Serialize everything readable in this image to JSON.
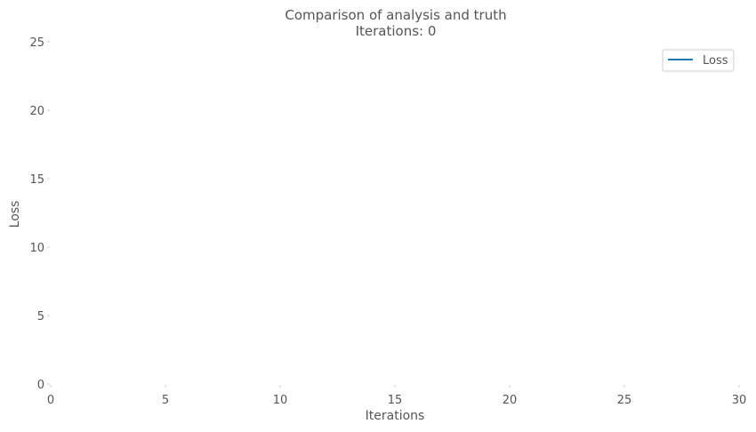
{
  "chart_data": {
    "type": "line",
    "title": "Comparison of analysis and truth",
    "subtitle": "Iterations: 0",
    "xlabel": "Iterations",
    "ylabel": "Loss",
    "xlim": [
      0,
      30
    ],
    "ylim": [
      0,
      25
    ],
    "xticks": [
      "0",
      "5",
      "10",
      "15",
      "20",
      "25",
      "30"
    ],
    "yticks": [
      "0",
      "5",
      "10",
      "15",
      "20",
      "25"
    ],
    "grid": false,
    "legend_position": "top-right",
    "series": [
      {
        "name": "Loss",
        "color": "#1f77b4",
        "x": [],
        "y": []
      }
    ]
  }
}
